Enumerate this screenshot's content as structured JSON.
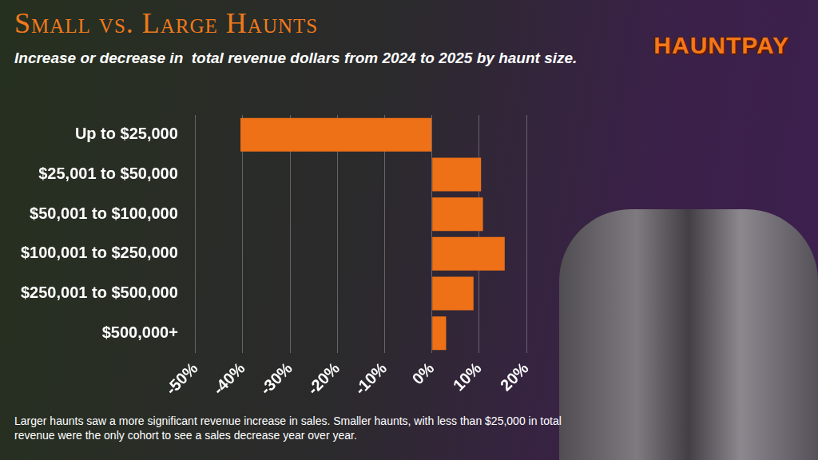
{
  "logo": "HAUNTPAY",
  "note": "Larger haunts saw a more significant revenue increase in sales. Smaller haunts, with less than $25,000 in total revenue were the only cohort to see a sales decrease year over year.",
  "chart_data": {
    "type": "bar",
    "orientation": "horizontal",
    "title": "Small vs. Large Haunts",
    "subtitle": "Increase or decrease in  total revenue dollars from 2024 to 2025 by haunt size.",
    "categories": [
      "Up to $25,000",
      "$25,001 to $50,000",
      "$50,001 to $100,000",
      "$100,001 to $250,000",
      "$250,001 to $500,000",
      "$500,000+"
    ],
    "values": [
      -40.5,
      10.4,
      10.8,
      15.4,
      8.8,
      3
    ],
    "color": "#ee7117",
    "xlim": [
      -50,
      20
    ],
    "xticks": [
      {
        "value": -50,
        "label": "-50%"
      },
      {
        "value": -40,
        "label": "-40%"
      },
      {
        "value": -30,
        "label": "-30%"
      },
      {
        "value": -20,
        "label": "-20%"
      },
      {
        "value": -10,
        "label": "-10%"
      },
      {
        "value": 0,
        "label": "0%"
      },
      {
        "value": 10,
        "label": "10%"
      },
      {
        "value": 20,
        "label": "20%"
      }
    ],
    "grid": true
  }
}
